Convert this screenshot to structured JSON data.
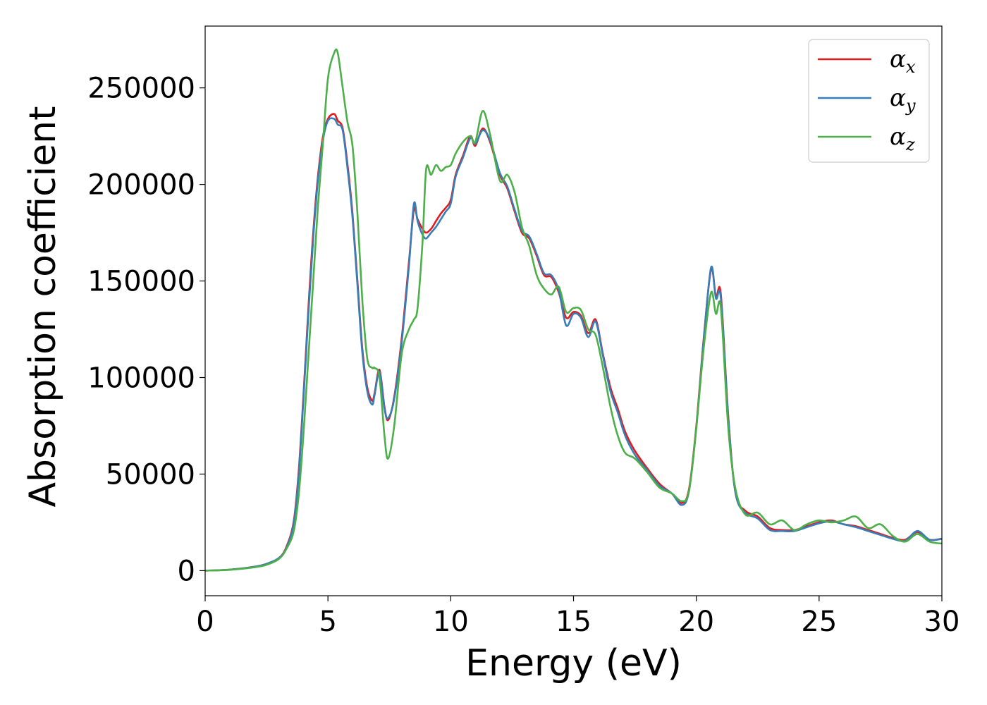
{
  "chart_data": {
    "type": "line",
    "xlabel": "Energy (eV)",
    "ylabel": "Absorption coefficient",
    "xlim": [
      0,
      30
    ],
    "ylim": [
      -13000,
      282000
    ],
    "xticks": [
      0,
      5,
      10,
      15,
      20,
      25,
      30
    ],
    "xtick_labels": [
      "0",
      "5",
      "10",
      "15",
      "20",
      "25",
      "30"
    ],
    "yticks": [
      0,
      50000,
      100000,
      150000,
      200000,
      250000
    ],
    "ytick_labels": [
      "0",
      "50000",
      "100000",
      "150000",
      "200000",
      "250000"
    ],
    "grid": false,
    "legend_position": "top-right",
    "series": [
      {
        "name": "α",
        "subscript": "x",
        "color": "#e41a1c",
        "x": [
          0,
          1,
          2,
          2.5,
          3,
          3.3,
          3.6,
          3.8,
          4.0,
          4.2,
          4.4,
          4.6,
          4.8,
          5.0,
          5.25,
          5.4,
          5.6,
          5.8,
          6.0,
          6.2,
          6.4,
          6.6,
          6.8,
          6.9,
          7.1,
          7.3,
          7.45,
          7.7,
          8.0,
          8.3,
          8.5,
          8.65,
          8.85,
          9.0,
          9.2,
          9.4,
          9.6,
          9.8,
          10.0,
          10.2,
          10.5,
          10.8,
          11.0,
          11.3,
          11.6,
          12.0,
          12.3,
          12.6,
          12.9,
          13.2,
          13.5,
          13.8,
          14.1,
          14.4,
          14.7,
          15.0,
          15.3,
          15.6,
          15.9,
          16.2,
          16.5,
          16.8,
          17.1,
          17.5,
          18.0,
          18.5,
          19.0,
          19.4,
          19.7,
          20.0,
          20.3,
          20.6,
          20.8,
          21.0,
          21.3,
          21.6,
          22.0,
          22.5,
          23.0,
          23.5,
          24.0,
          24.5,
          25.0,
          25.5,
          26.0,
          26.5,
          27.0,
          27.5,
          28.0,
          28.5,
          29.0,
          29.5,
          30.0
        ],
        "y": [
          0,
          500,
          2000,
          3500,
          6500,
          12000,
          25000,
          50000,
          90000,
          135000,
          175000,
          205000,
          225000,
          234000,
          236500,
          233000,
          229000,
          210000,
          185000,
          150000,
          115000,
          95000,
          88000,
          92000,
          104000,
          85000,
          78000,
          90000,
          120000,
          160000,
          187000,
          182000,
          177000,
          175000,
          177000,
          181000,
          185000,
          188000,
          192000,
          205000,
          215000,
          225000,
          220000,
          229000,
          222000,
          205000,
          198000,
          186000,
          175000,
          172000,
          163000,
          153000,
          152000,
          144000,
          131000,
          134000,
          132000,
          123000,
          130000,
          112000,
          95000,
          84000,
          72000,
          62000,
          53000,
          45000,
          40000,
          35000,
          42000,
          75000,
          120000,
          156000,
          142000,
          143000,
          80000,
          40000,
          31000,
          28000,
          22000,
          21000,
          21000,
          23000,
          25000,
          26000,
          24000,
          23000,
          21000,
          19000,
          17000,
          16000,
          20000,
          16000,
          16500
        ]
      },
      {
        "name": "α",
        "subscript": "y",
        "color": "#377eb8",
        "x": [
          0,
          1,
          2,
          2.5,
          3,
          3.3,
          3.6,
          3.8,
          4.0,
          4.2,
          4.4,
          4.6,
          4.8,
          5.0,
          5.25,
          5.4,
          5.6,
          5.8,
          6.0,
          6.2,
          6.4,
          6.6,
          6.8,
          6.9,
          7.1,
          7.3,
          7.45,
          7.7,
          8.0,
          8.3,
          8.5,
          8.65,
          8.85,
          9.0,
          9.2,
          9.4,
          9.6,
          9.8,
          10.0,
          10.2,
          10.5,
          10.8,
          11.0,
          11.3,
          11.6,
          12.0,
          12.3,
          12.6,
          12.9,
          13.2,
          13.5,
          13.8,
          14.1,
          14.4,
          14.7,
          15.0,
          15.3,
          15.6,
          15.9,
          16.2,
          16.5,
          16.8,
          17.1,
          17.5,
          18.0,
          18.5,
          19.0,
          19.4,
          19.7,
          20.0,
          20.3,
          20.6,
          20.8,
          21.0,
          21.3,
          21.6,
          22.0,
          22.5,
          23.0,
          23.5,
          24.0,
          24.5,
          25.0,
          25.5,
          26.0,
          26.5,
          27.0,
          27.5,
          28.0,
          28.5,
          29.0,
          29.5,
          30.0
        ],
        "y": [
          0,
          500,
          2000,
          3500,
          6500,
          11500,
          24000,
          48000,
          88000,
          132000,
          172000,
          203000,
          223000,
          233000,
          234000,
          231000,
          228000,
          208000,
          183000,
          148000,
          113000,
          93000,
          86000,
          91000,
          103000,
          84000,
          79000,
          89000,
          118000,
          158000,
          190000,
          181000,
          174000,
          172000,
          175000,
          178000,
          182000,
          186000,
          190000,
          204000,
          214000,
          224000,
          221000,
          228000,
          223000,
          206000,
          199000,
          187000,
          176000,
          173000,
          164000,
          154000,
          153000,
          145000,
          127000,
          133000,
          131000,
          121000,
          129000,
          111000,
          93000,
          82000,
          70000,
          60000,
          52000,
          44000,
          40000,
          34000,
          41000,
          74000,
          119000,
          157000,
          141000,
          141000,
          79000,
          40000,
          30000,
          27000,
          21000,
          20500,
          20500,
          22500,
          24500,
          25500,
          24000,
          22500,
          20500,
          18500,
          16500,
          15500,
          20500,
          16000,
          16500
        ]
      },
      {
        "name": "α",
        "subscript": "z",
        "color": "#4daf4a",
        "x": [
          0,
          1,
          2,
          2.5,
          3,
          3.3,
          3.6,
          3.8,
          4.0,
          4.2,
          4.4,
          4.6,
          4.8,
          5.0,
          5.25,
          5.4,
          5.6,
          5.8,
          6.0,
          6.2,
          6.4,
          6.6,
          6.8,
          6.9,
          7.1,
          7.3,
          7.45,
          7.7,
          8.0,
          8.3,
          8.5,
          8.65,
          8.85,
          9.0,
          9.2,
          9.4,
          9.6,
          9.8,
          10.0,
          10.2,
          10.5,
          10.8,
          11.0,
          11.3,
          11.6,
          12.0,
          12.3,
          12.6,
          12.9,
          13.2,
          13.5,
          13.8,
          14.1,
          14.4,
          14.7,
          15.0,
          15.3,
          15.6,
          15.9,
          16.2,
          16.5,
          16.8,
          17.1,
          17.5,
          18.0,
          18.5,
          19.0,
          19.4,
          19.7,
          20.0,
          20.3,
          20.6,
          20.8,
          21.0,
          21.3,
          21.6,
          22.0,
          22.5,
          23.0,
          23.5,
          24.0,
          24.5,
          25.0,
          25.5,
          26.0,
          26.5,
          27.0,
          27.5,
          28.0,
          28.5,
          29.0,
          29.5,
          30.0
        ],
        "y": [
          0,
          400,
          1700,
          3000,
          6000,
          11000,
          20000,
          38000,
          70000,
          110000,
          150000,
          190000,
          222000,
          255000,
          268000,
          268000,
          250000,
          232000,
          220000,
          185000,
          140000,
          110000,
          105000,
          105000,
          100000,
          70000,
          58000,
          75000,
          112000,
          125000,
          130000,
          136000,
          170000,
          208000,
          205000,
          210000,
          207000,
          209000,
          210000,
          216000,
          222000,
          225000,
          222000,
          238000,
          226000,
          202000,
          205000,
          196000,
          178000,
          168000,
          153000,
          146000,
          143000,
          147000,
          134000,
          136000,
          135000,
          125000,
          122000,
          105000,
          85000,
          70000,
          61000,
          58000,
          51000,
          43000,
          40000,
          36000,
          41000,
          74000,
          115000,
          144000,
          133000,
          136000,
          74000,
          42000,
          29000,
          30000,
          24000,
          26000,
          21000,
          24000,
          26000,
          25000,
          26000,
          28000,
          22000,
          24000,
          18000,
          15000,
          19000,
          15000,
          14000
        ]
      }
    ]
  }
}
